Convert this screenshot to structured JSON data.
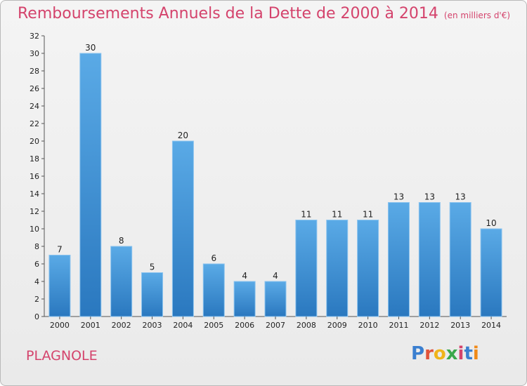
{
  "title": "Remboursements Annuels de la Dette de 2000 à 2014",
  "unit_note": "(en milliers d'€)",
  "location": "PLAGNOLE",
  "logo": {
    "letters": [
      {
        "ch": "P",
        "color": "#3a7fd0"
      },
      {
        "ch": "r",
        "color": "#e0523a"
      },
      {
        "ch": "o",
        "color": "#f0b419"
      },
      {
        "ch": "x",
        "color": "#3aa84a"
      },
      {
        "ch": "i",
        "color": "#d4436c"
      },
      {
        "ch": "t",
        "color": "#3a7fd0"
      },
      {
        "ch": "i",
        "color": "#f08a19"
      }
    ]
  },
  "colors": {
    "title": "#d4436c",
    "bar_top": "#5aaae6",
    "bar_bottom": "#2a78bf",
    "bar_edge": "#8cc4ef"
  },
  "chart_data": {
    "type": "bar",
    "categories": [
      "2000",
      "2001",
      "2002",
      "2003",
      "2004",
      "2005",
      "2006",
      "2007",
      "2008",
      "2009",
      "2010",
      "2011",
      "2012",
      "2013",
      "2014"
    ],
    "values": [
      7,
      30,
      8,
      5,
      20,
      6,
      4,
      4,
      11,
      11,
      11,
      13,
      13,
      13,
      10
    ],
    "ylim": [
      0,
      32
    ],
    "yticks": [
      0,
      2,
      4,
      6,
      8,
      10,
      12,
      14,
      16,
      18,
      20,
      22,
      24,
      26,
      28,
      30,
      32
    ],
    "grid": false,
    "data_labels": true
  }
}
